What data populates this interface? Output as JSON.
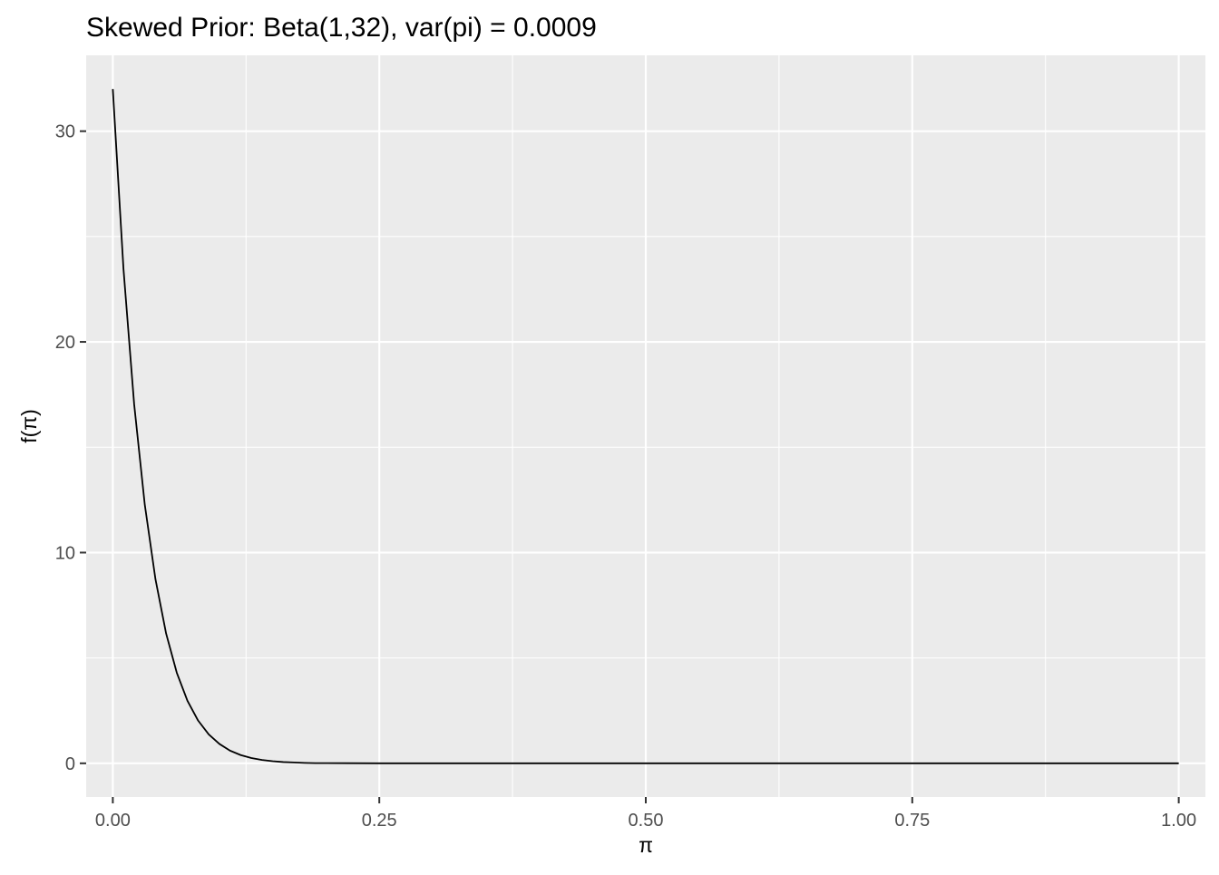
{
  "chart_data": {
    "type": "line",
    "title": "Skewed Prior: Beta(1,32), var(pi) = 0.0009",
    "xlabel": "π",
    "ylabel": "f(π)",
    "xlim": [
      -0.025,
      1.025
    ],
    "ylim": [
      -1.6,
      33.6
    ],
    "x_ticks": [
      0,
      0.25,
      0.5,
      0.75,
      1
    ],
    "x_tick_labels": [
      "0.00",
      "0.25",
      "0.50",
      "0.75",
      "1.00"
    ],
    "y_ticks": [
      0,
      10,
      20,
      30
    ],
    "y_tick_labels": [
      "0",
      "10",
      "20",
      "30"
    ],
    "x_minor_ticks": [
      0.125,
      0.375,
      0.625,
      0.875
    ],
    "y_minor_ticks": [
      5,
      15,
      25
    ],
    "grid": true,
    "legend": "none",
    "series": [
      {
        "distribution": "Beta(1,32)",
        "x": [
          0,
          0.01,
          0.02,
          0.03,
          0.04,
          0.05,
          0.06,
          0.07,
          0.08,
          0.09,
          0.1,
          0.11,
          0.12,
          0.13,
          0.14,
          0.15,
          0.16,
          0.17,
          0.18,
          0.19,
          0.2,
          0.25,
          0.3,
          0.4,
          0.5,
          0.6,
          0.7,
          0.8,
          0.9,
          1
        ],
        "y": [
          32,
          23.47,
          17.05,
          12.27,
          8.74,
          6.16,
          4.3,
          2.97,
          2.03,
          1.37,
          0.92,
          0.6,
          0.39,
          0.25,
          0.16,
          0.1,
          0.06,
          0.04,
          0.02,
          0.01,
          0.01,
          0,
          0,
          0,
          0,
          0,
          0,
          0,
          0,
          0
        ],
        "color": "#000000"
      }
    ],
    "panel_background": "#ebebeb",
    "grid_color": "#ffffff"
  }
}
